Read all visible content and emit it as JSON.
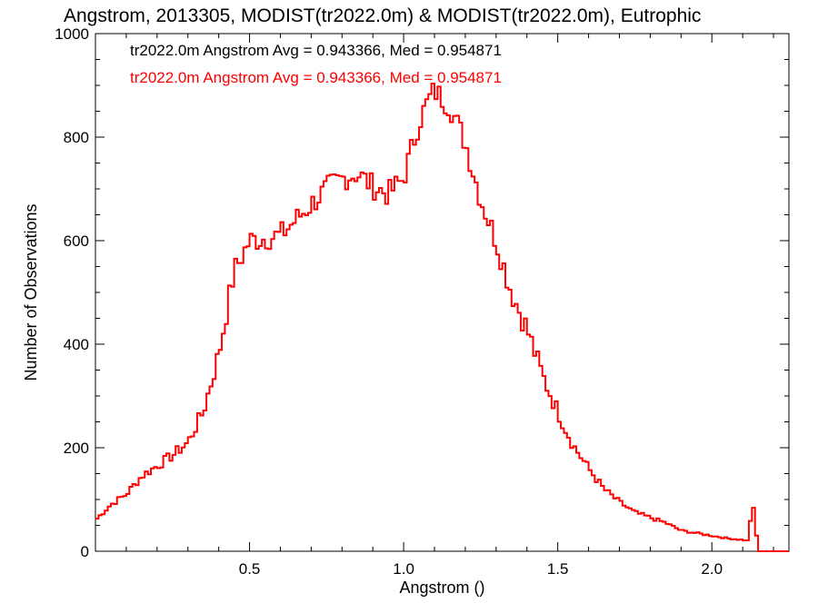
{
  "chart_data": {
    "type": "line",
    "title": "Angstrom, 2013305, MODIST(tr2022.0m) & MODIST(tr2022.0m), Eutrophic",
    "xlabel": "Angstrom ()",
    "ylabel": "Number of Observations",
    "xlim": [
      0.0,
      2.25
    ],
    "ylim": [
      0,
      1000
    ],
    "x_ticks": [
      "0.5",
      "1.0",
      "1.5",
      "2.0"
    ],
    "y_ticks": [
      "0",
      "200",
      "400",
      "600",
      "800",
      "1000"
    ],
    "grid": false,
    "annotations": [
      {
        "text": "tr2022.0m Angstrom Avg = 0.943366, Med = 0.954871",
        "color": "#000000"
      },
      {
        "text": "tr2022.0m Angstrom Avg = 0.943366, Med = 0.954871",
        "color": "#ff0000"
      }
    ],
    "series": [
      {
        "color": "#ff0000",
        "x": [
          0.0,
          0.05,
          0.1,
          0.15,
          0.2,
          0.25,
          0.3,
          0.35,
          0.4,
          0.45,
          0.5,
          0.55,
          0.6,
          0.65,
          0.7,
          0.75,
          0.8,
          0.85,
          0.9,
          0.95,
          1.0,
          1.05,
          1.08,
          1.1,
          1.15,
          1.2,
          1.25,
          1.3,
          1.35,
          1.4,
          1.45,
          1.5,
          1.55,
          1.6,
          1.65,
          1.7,
          1.75,
          1.8,
          1.85,
          1.9,
          1.95,
          2.0,
          2.05,
          2.1,
          2.12,
          2.13,
          2.14,
          2.15,
          2.25
        ],
        "y": [
          60,
          90,
          110,
          145,
          165,
          185,
          210,
          270,
          380,
          540,
          600,
          605,
          610,
          640,
          670,
          700,
          720,
          730,
          705,
          690,
          720,
          830,
          870,
          890,
          860,
          790,
          680,
          600,
          500,
          430,
          340,
          270,
          205,
          160,
          120,
          95,
          75,
          65,
          55,
          40,
          35,
          30,
          25,
          22,
          20,
          100,
          60,
          0,
          0
        ]
      }
    ]
  }
}
